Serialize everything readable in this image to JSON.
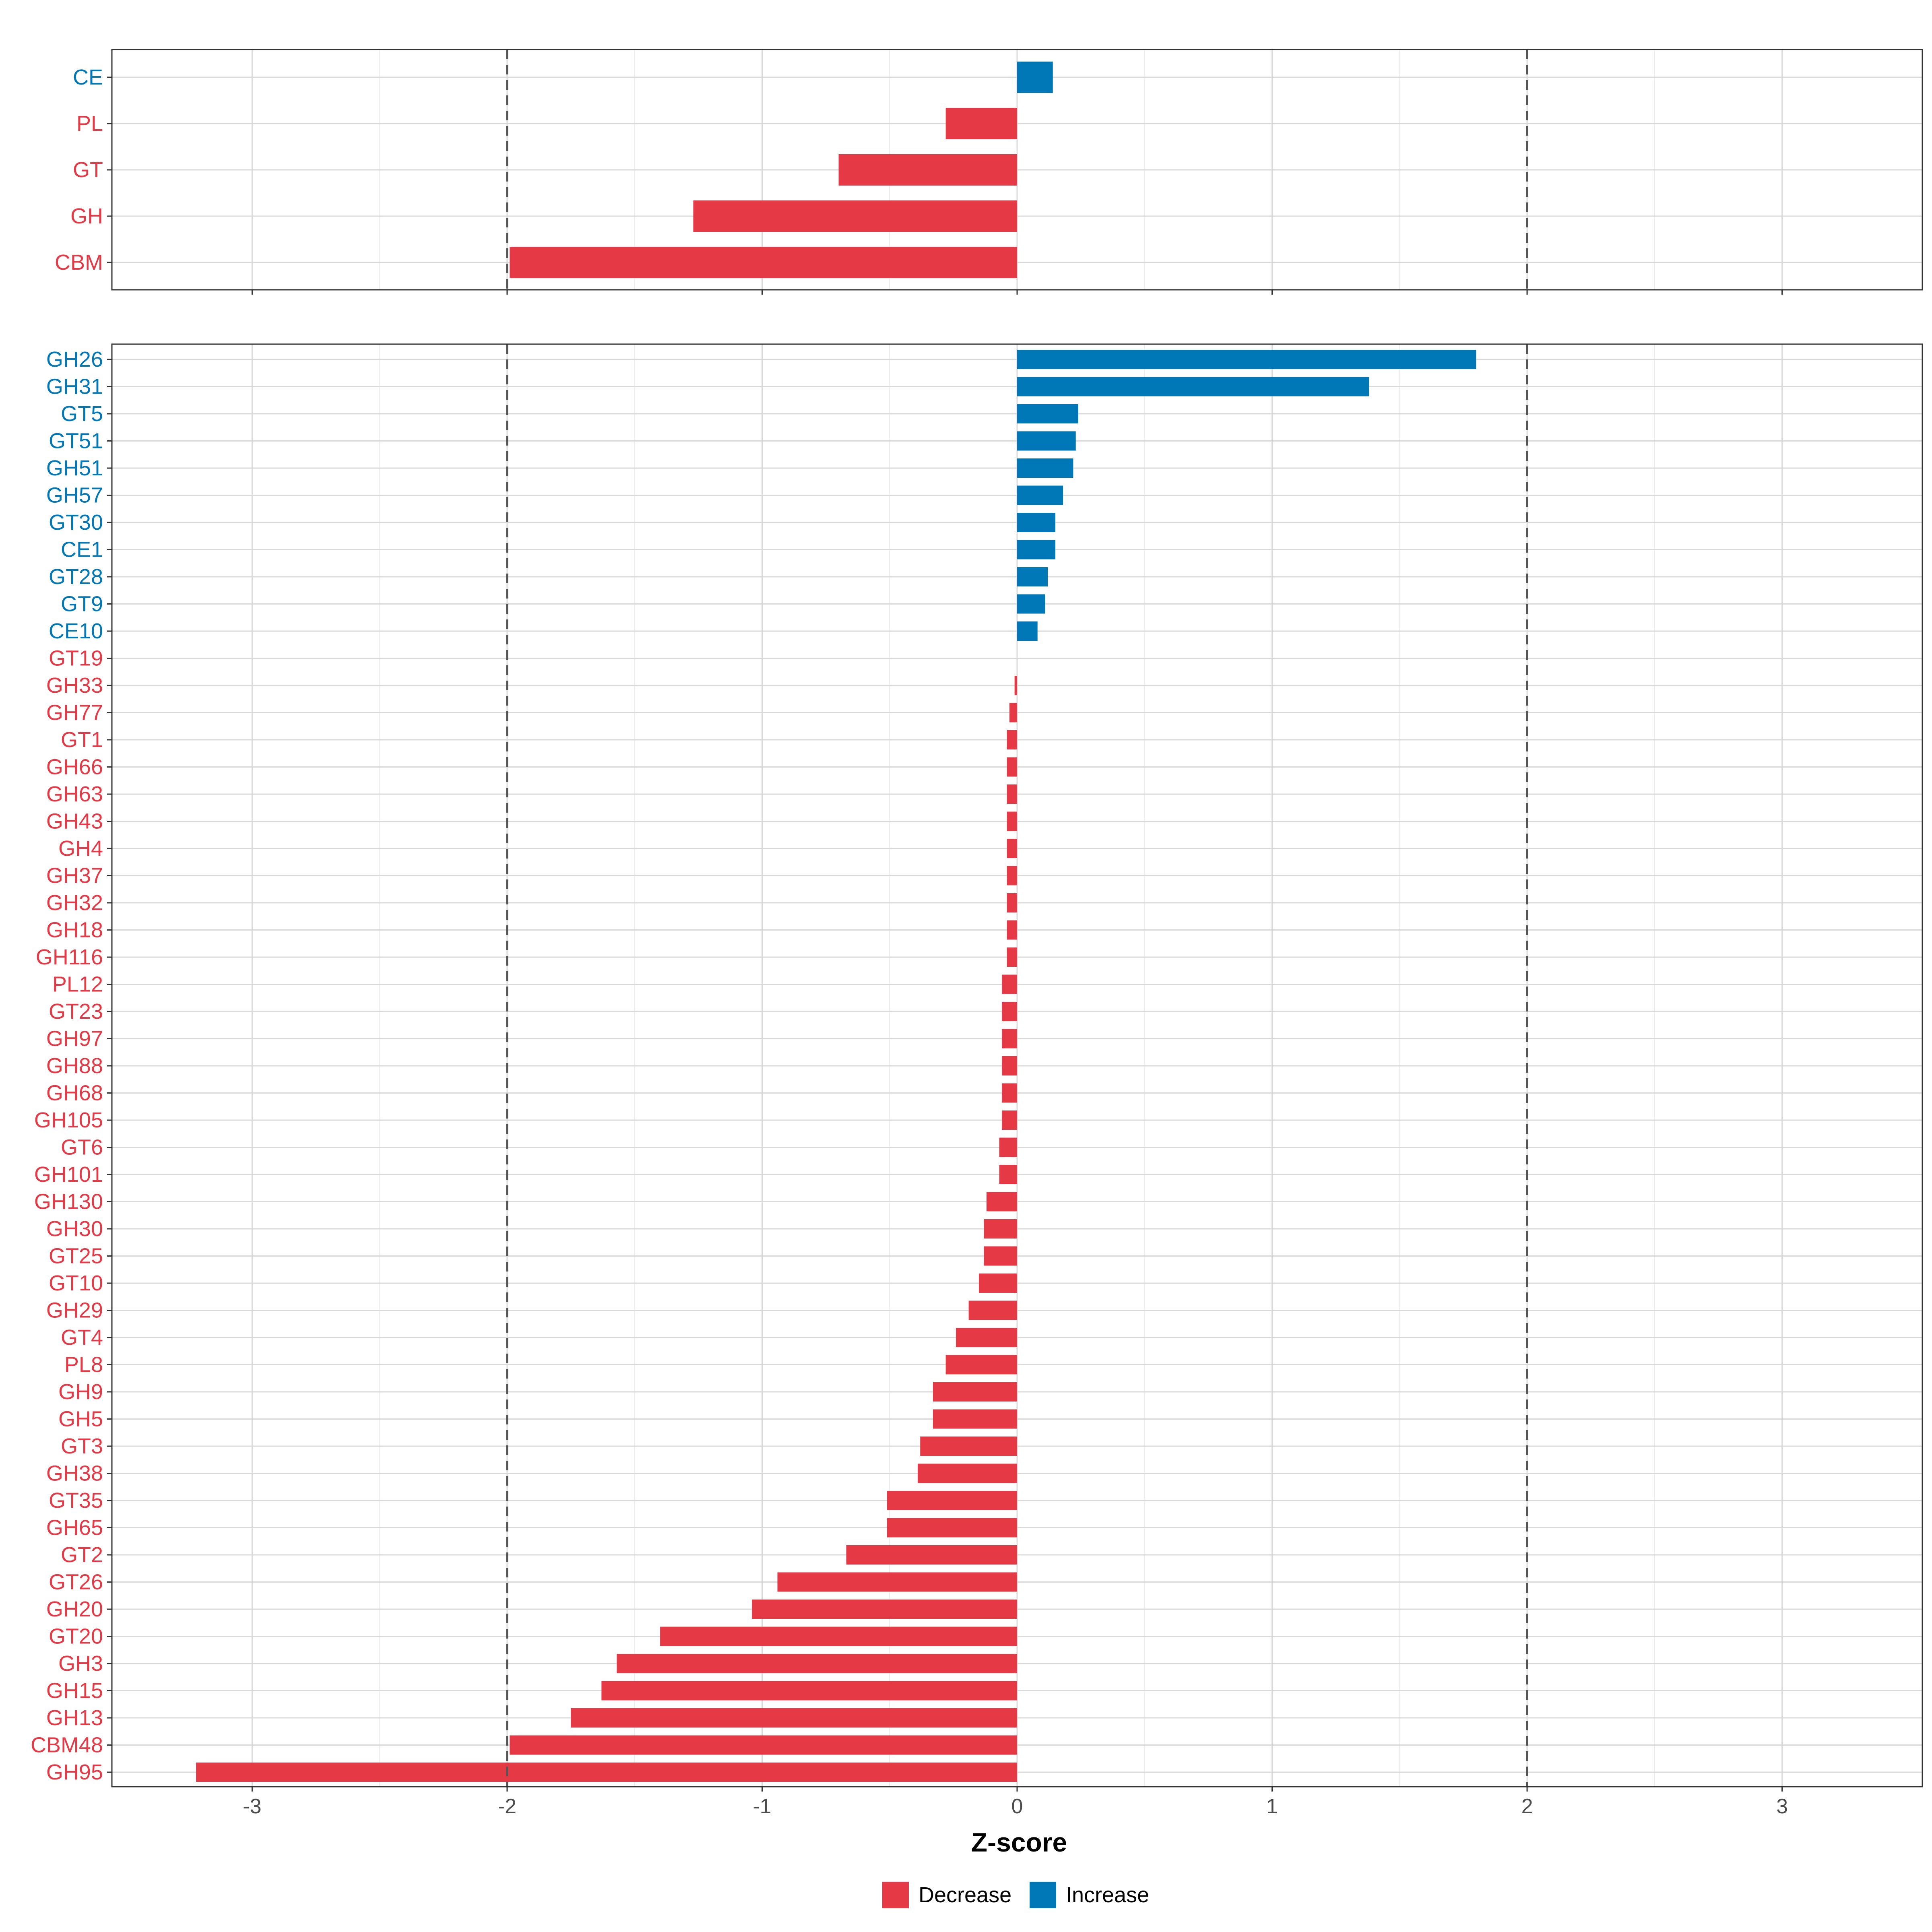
{
  "chart_data": {
    "type": "bar",
    "orientation": "horizontal",
    "xlabel": "Z-score",
    "xlim": [
      -3.55,
      3.55
    ],
    "x_ticks": [
      -3,
      -2,
      -1,
      0,
      1,
      2,
      3
    ],
    "x_tick_labels": [
      "-3",
      "-2",
      "-1",
      "0",
      "1",
      "2",
      "3"
    ],
    "reference_lines": [
      -2,
      2
    ],
    "grid": true,
    "colors": {
      "Decrease": "#e63946",
      "Increase": "#0077b6"
    },
    "legend": {
      "position": "bottom",
      "entries": [
        {
          "label": "Decrease",
          "color": "#e63946"
        },
        {
          "label": "Increase",
          "color": "#0077b6"
        }
      ]
    },
    "panels": [
      {
        "name": "class",
        "categories": [
          "CE",
          "PL",
          "GT",
          "GH",
          "CBM"
        ],
        "values": [
          0.14,
          -0.28,
          -0.7,
          -1.27,
          -1.99
        ],
        "direction": [
          "Increase",
          "Decrease",
          "Decrease",
          "Decrease",
          "Decrease"
        ]
      },
      {
        "name": "family",
        "categories": [
          "GH26",
          "GH31",
          "GT5",
          "GT51",
          "GH51",
          "GH57",
          "GT30",
          "CE1",
          "GT28",
          "GT9",
          "CE10",
          "GT19",
          "GH33",
          "GH77",
          "GT1",
          "GH66",
          "GH63",
          "GH43",
          "GH4",
          "GH37",
          "GH32",
          "GH18",
          "GH116",
          "PL12",
          "GT23",
          "GH97",
          "GH88",
          "GH68",
          "GH105",
          "GT6",
          "GH101",
          "GH130",
          "GH30",
          "GT25",
          "GT10",
          "GH29",
          "GT4",
          "PL8",
          "GH9",
          "GH5",
          "GT3",
          "GH38",
          "GT35",
          "GH65",
          "GT2",
          "GT26",
          "GH20",
          "GT20",
          "GH3",
          "GH15",
          "GH13",
          "CBM48",
          "GH95"
        ],
        "values": [
          1.8,
          1.38,
          0.24,
          0.23,
          0.22,
          0.18,
          0.15,
          0.15,
          0.12,
          0.11,
          0.08,
          0.0,
          -0.01,
          -0.03,
          -0.04,
          -0.04,
          -0.04,
          -0.04,
          -0.04,
          -0.04,
          -0.04,
          -0.04,
          -0.04,
          -0.06,
          -0.06,
          -0.06,
          -0.06,
          -0.06,
          -0.06,
          -0.07,
          -0.07,
          -0.12,
          -0.13,
          -0.13,
          -0.15,
          -0.19,
          -0.24,
          -0.28,
          -0.33,
          -0.33,
          -0.38,
          -0.39,
          -0.51,
          -0.51,
          -0.67,
          -0.94,
          -1.04,
          -1.4,
          -1.57,
          -1.63,
          -1.75,
          -1.99,
          -3.22
        ],
        "direction": [
          "Increase",
          "Increase",
          "Increase",
          "Increase",
          "Increase",
          "Increase",
          "Increase",
          "Increase",
          "Increase",
          "Increase",
          "Increase",
          "Decrease",
          "Decrease",
          "Decrease",
          "Decrease",
          "Decrease",
          "Decrease",
          "Decrease",
          "Decrease",
          "Decrease",
          "Decrease",
          "Decrease",
          "Decrease",
          "Decrease",
          "Decrease",
          "Decrease",
          "Decrease",
          "Decrease",
          "Decrease",
          "Decrease",
          "Decrease",
          "Decrease",
          "Decrease",
          "Decrease",
          "Decrease",
          "Decrease",
          "Decrease",
          "Decrease",
          "Decrease",
          "Decrease",
          "Decrease",
          "Decrease",
          "Decrease",
          "Decrease",
          "Decrease",
          "Decrease",
          "Decrease",
          "Decrease",
          "Decrease",
          "Decrease",
          "Decrease",
          "Decrease",
          "Decrease"
        ]
      }
    ]
  }
}
